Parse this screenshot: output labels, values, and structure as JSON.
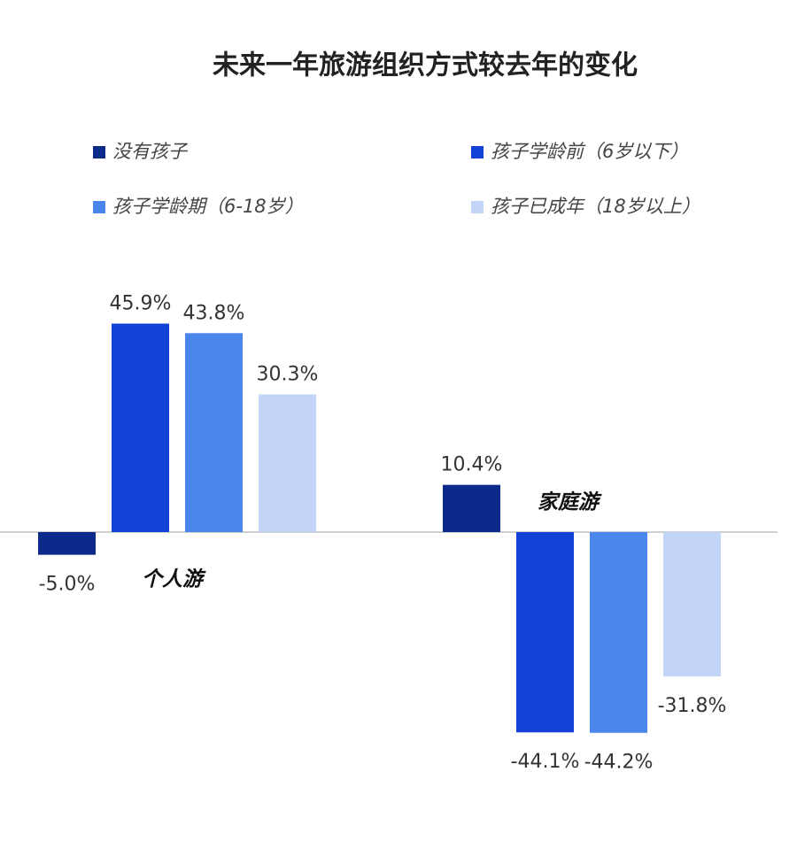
{
  "chart_data": {
    "type": "bar",
    "title": "未来一年旅游组织方式较去年的变化",
    "categories": [
      "个人游",
      "家庭游"
    ],
    "series": [
      {
        "name": "没有孩子",
        "color": "#0b2a8a",
        "values": [
          -5.0,
          10.4
        ],
        "value_labels": [
          "-5.0%",
          "10.4%"
        ]
      },
      {
        "name": "孩子学龄前（6岁以下）",
        "color": "#1242d6",
        "values": [
          45.9,
          -44.1
        ],
        "value_labels": [
          "45.9%",
          "-44.1%"
        ]
      },
      {
        "name": "孩子学龄期（6-18岁）",
        "color": "#4a86ec",
        "values": [
          43.8,
          -44.2
        ],
        "value_labels": [
          "43.8%",
          "-44.2%"
        ]
      },
      {
        "name": "孩子已成年（18岁以上）",
        "color": "#c2d5f6",
        "values": [
          30.3,
          -31.8
        ],
        "value_labels": [
          "30.3%",
          "-31.8%"
        ]
      }
    ],
    "legend": "top"
  }
}
